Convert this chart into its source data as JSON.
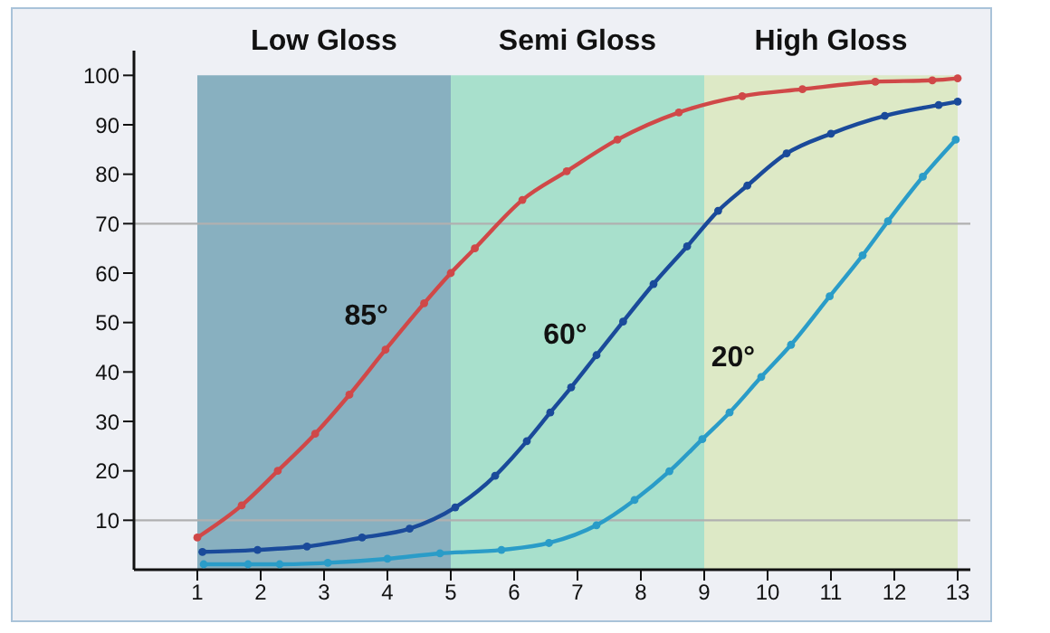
{
  "chart_data": {
    "type": "line",
    "xlim": [
      0,
      13.2
    ],
    "xticks": [
      1,
      2,
      3,
      4,
      5,
      6,
      7,
      8,
      9,
      10,
      11,
      12,
      13
    ],
    "ylim": [
      0,
      105
    ],
    "yticks": [
      10,
      20,
      30,
      40,
      50,
      60,
      70,
      80,
      90,
      100
    ],
    "grid": false,
    "legend": false,
    "marker": "circle",
    "line_style": "solid",
    "series": [
      {
        "name": "85°",
        "color": "#d04848",
        "x": [
          1,
          1.7,
          2.27,
          2.86,
          3.4,
          3.97,
          4.58,
          5,
          5.38,
          6.13,
          6.83,
          7.63,
          8.6,
          9.6,
          10.55,
          11.7,
          12.6,
          13
        ],
        "values": [
          6.5,
          13,
          20,
          27.5,
          35.4,
          44.5,
          53.9,
          60,
          65,
          74.8,
          80.6,
          87,
          92.5,
          95.8,
          97.2,
          98.7,
          99,
          99.4
        ]
      },
      {
        "name": "60°",
        "color": "#1a4a9a",
        "x": [
          1.08,
          1.95,
          2.73,
          3.6,
          4.35,
          5.07,
          5.7,
          6.2,
          6.57,
          6.9,
          7.3,
          7.72,
          8.2,
          8.73,
          9.22,
          9.68,
          10.3,
          11,
          11.85,
          12.7,
          13
        ],
        "values": [
          3.6,
          4,
          4.7,
          6.5,
          8.3,
          12.6,
          19,
          26,
          31.8,
          36.9,
          43.4,
          50.2,
          57.8,
          65.4,
          72.6,
          77.7,
          84.2,
          88.2,
          91.8,
          94,
          94.7
        ]
      },
      {
        "name": "20°",
        "color": "#2a9cc8",
        "x": [
          1.1,
          1.8,
          2.3,
          3.06,
          4,
          4.83,
          5.8,
          6.55,
          7.3,
          7.9,
          8.45,
          8.97,
          9.4,
          9.9,
          10.37,
          10.98,
          11.5,
          11.9,
          12.45,
          12.97
        ],
        "values": [
          1.1,
          1.1,
          1.1,
          1.4,
          2.2,
          3.3,
          4,
          5.4,
          9,
          14.1,
          19.9,
          26.4,
          31.8,
          39,
          45.5,
          55.3,
          63.6,
          70.5,
          79.5,
          87
        ]
      }
    ],
    "bands": [
      {
        "axis": "x",
        "from": 1,
        "to": 5,
        "label": "Low Gloss",
        "color": "#88b0c0"
      },
      {
        "axis": "x",
        "from": 5,
        "to": 9,
        "label": "Semi Gloss",
        "color": "#a8e0cc"
      },
      {
        "axis": "x",
        "from": 9,
        "to": 13,
        "label": "High Gloss",
        "color": "#dde9c6"
      }
    ],
    "ref_lines": [
      {
        "axis": "y",
        "value": 10,
        "color": "#b0b0b0",
        "line_style": "solid"
      },
      {
        "axis": "y",
        "value": 70,
        "color": "#b0b0b0",
        "line_style": "solid"
      }
    ]
  }
}
